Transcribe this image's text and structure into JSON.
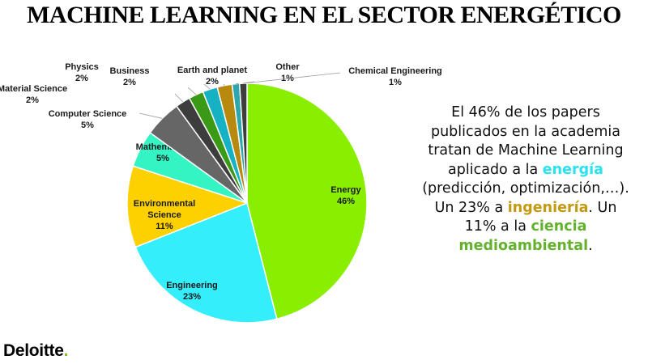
{
  "title": "MACHINE LEARNING EN EL SECTOR ENERGÉTICO",
  "chart_data": {
    "type": "pie",
    "start": "12 o'clock",
    "direction": "clockwise",
    "slices": [
      {
        "label": "Energy",
        "value": 46,
        "value_label": "46%",
        "color": "#8aee00"
      },
      {
        "label": "Engineering",
        "value": 23,
        "value_label": "23%",
        "color": "#35eefb"
      },
      {
        "label": "Environmental Science",
        "value": 11,
        "value_label": "11%",
        "color": "#fdd000"
      },
      {
        "label": "Mathematics",
        "value": 5,
        "value_label": "5%",
        "color": "#34f4c4"
      },
      {
        "label": "Computer Science",
        "value": 5,
        "value_label": "5%",
        "color": "#666666"
      },
      {
        "label": "Material Science",
        "value": 2,
        "value_label": "2%",
        "color": "#3d3d3d"
      },
      {
        "label": "Physics",
        "value": 2,
        "value_label": "2%",
        "color": "#3a9a16"
      },
      {
        "label": "Business",
        "value": 2,
        "value_label": "2%",
        "color": "#16b2c4"
      },
      {
        "label": "Earth and planet",
        "value": 2,
        "value_label": "2%",
        "color": "#b8890f"
      },
      {
        "label": "Other",
        "value": 1,
        "value_label": "1%",
        "color": "#2ea6ad"
      },
      {
        "label": "Chemical Engineering",
        "value": 1,
        "value_label": "1%",
        "color": "#3d3d3d"
      }
    ]
  },
  "summary": [
    {
      "text": "El 46% de los papers publicados en la academia tratan de Machine Learning aplicado a la "
    },
    {
      "text": "energía",
      "color": "#28e2f0"
    },
    {
      "text": " (predicción, optimización,…). Un 23% a "
    },
    {
      "text": "ingeniería",
      "color": "#c29a12"
    },
    {
      "text": ". Un 11% a la "
    },
    {
      "text": "ciencia medioambiental",
      "color": "#64b12d"
    },
    {
      "text": "."
    }
  ],
  "logo": {
    "name": "Deloitte",
    "dot": ".",
    "dot_color": "#86bc25"
  }
}
